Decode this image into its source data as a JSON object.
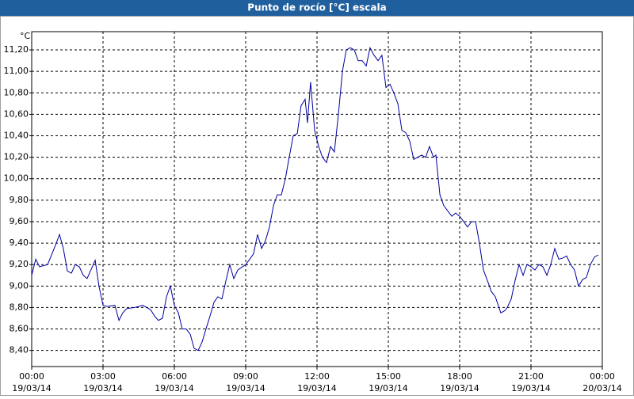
{
  "chart_data": {
    "type": "line",
    "title": "Punto de rocío [°C] escala",
    "y_unit": "°C",
    "xlim": [
      0,
      24
    ],
    "xticks": [
      {
        "value": 0,
        "label": "00:00",
        "date": "19/03/14"
      },
      {
        "value": 3,
        "label": "03:00",
        "date": "19/03/14"
      },
      {
        "value": 6,
        "label": "06:00",
        "date": "19/03/14"
      },
      {
        "value": 9,
        "label": "09:00",
        "date": "19/03/14"
      },
      {
        "value": 12,
        "label": "12:00",
        "date": "19/03/14"
      },
      {
        "value": 15,
        "label": "15:00",
        "date": "19/03/14"
      },
      {
        "value": 18,
        "label": "18:00",
        "date": "19/03/14"
      },
      {
        "value": 21,
        "label": "21:00",
        "date": "19/03/14"
      },
      {
        "value": 24,
        "label": "00:00",
        "date": "20/03/14"
      }
    ],
    "ylim": [
      8.25,
      11.37
    ],
    "yticks": [
      {
        "value": 8.4,
        "label": "8,40"
      },
      {
        "value": 8.6,
        "label": "8,60"
      },
      {
        "value": 8.8,
        "label": "8,80"
      },
      {
        "value": 9.0,
        "label": "9,00"
      },
      {
        "value": 9.2,
        "label": "9,20"
      },
      {
        "value": 9.4,
        "label": "9,40"
      },
      {
        "value": 9.6,
        "label": "9,60"
      },
      {
        "value": 9.8,
        "label": "9,80"
      },
      {
        "value": 10.0,
        "label": "10,00"
      },
      {
        "value": 10.2,
        "label": "10,20"
      },
      {
        "value": 10.4,
        "label": "10,40"
      },
      {
        "value": 10.6,
        "label": "10,60"
      },
      {
        "value": 10.8,
        "label": "10,80"
      },
      {
        "value": 11.0,
        "label": "11,00"
      },
      {
        "value": 11.2,
        "label": "11,20"
      }
    ],
    "grid": true,
    "color": "#0000a0",
    "x": [
      0,
      0.17,
      0.33,
      0.67,
      1,
      1.17,
      1.33,
      1.5,
      1.67,
      1.83,
      2,
      2.17,
      2.33,
      2.67,
      2.83,
      3,
      3.17,
      3.5,
      3.67,
      3.83,
      4,
      4.33,
      4.67,
      5,
      5.17,
      5.33,
      5.5,
      5.67,
      5.83,
      6,
      6.17,
      6.33,
      6.5,
      6.67,
      6.83,
      7,
      7.17,
      7.33,
      7.5,
      7.67,
      7.83,
      8,
      8.17,
      8.33,
      8.5,
      8.67,
      9,
      9.17,
      9.33,
      9.5,
      9.67,
      9.83,
      10,
      10.17,
      10.33,
      10.5,
      10.67,
      10.83,
      11,
      11.17,
      11.33,
      11.5,
      11.6,
      11.73,
      11.9,
      12.07,
      12.23,
      12.4,
      12.57,
      12.73,
      12.9,
      13.07,
      13.23,
      13.4,
      13.57,
      13.73,
      13.9,
      14.07,
      14.23,
      14.4,
      14.57,
      14.73,
      14.9,
      15.07,
      15.23,
      15.4,
      15.57,
      15.73,
      15.9,
      16.07,
      16.23,
      16.4,
      16.57,
      16.73,
      16.9,
      17,
      17.17,
      17.33,
      17.5,
      17.67,
      17.83,
      18,
      18.17,
      18.33,
      18.5,
      18.67,
      18.83,
      19,
      19.17,
      19.33,
      19.5,
      19.73,
      19.9,
      20,
      20.17,
      20.33,
      20.5,
      20.67,
      20.83,
      21,
      21.17,
      21.33,
      21.5,
      21.67,
      21.83,
      22,
      22.17,
      22.33,
      22.5,
      22.67,
      22.83,
      23,
      23.17,
      23.33,
      23.5,
      23.67,
      23.83
    ],
    "values": [
      9.1,
      9.25,
      9.18,
      9.2,
      9.38,
      9.48,
      9.35,
      9.14,
      9.12,
      9.2,
      9.18,
      9.1,
      9.07,
      9.24,
      9.0,
      8.82,
      8.81,
      8.82,
      8.68,
      8.75,
      8.79,
      8.8,
      8.82,
      8.78,
      8.72,
      8.68,
      8.7,
      8.9,
      9.0,
      8.82,
      8.75,
      8.6,
      8.6,
      8.55,
      8.42,
      8.4,
      8.48,
      8.6,
      8.72,
      8.85,
      8.9,
      8.88,
      9.05,
      9.2,
      9.07,
      9.15,
      9.2,
      9.25,
      9.3,
      9.48,
      9.35,
      9.42,
      9.55,
      9.75,
      9.85,
      9.85,
      10.0,
      10.2,
      10.4,
      10.42,
      10.68,
      10.74,
      10.52,
      10.9,
      10.45,
      10.3,
      10.2,
      10.15,
      10.3,
      10.25,
      10.6,
      11.0,
      11.2,
      11.22,
      11.2,
      11.1,
      11.1,
      11.05,
      11.22,
      11.15,
      11.1,
      11.15,
      10.85,
      10.88,
      10.8,
      10.7,
      10.45,
      10.43,
      10.35,
      10.18,
      10.2,
      10.22,
      10.2,
      10.3,
      10.2,
      10.22,
      9.85,
      9.75,
      9.7,
      9.65,
      9.68,
      9.65,
      9.6,
      9.55,
      9.6,
      9.6,
      9.4,
      9.15,
      9.05,
      8.95,
      8.9,
      8.75,
      8.77,
      8.8,
      8.88,
      9.05,
      9.2,
      9.1,
      9.2,
      9.18,
      9.15,
      9.2,
      9.18,
      9.1,
      9.2,
      9.35,
      9.25,
      9.26,
      9.28,
      9.2,
      9.15,
      9.0,
      9.06,
      9.08,
      9.2,
      9.27,
      9.29
    ]
  }
}
